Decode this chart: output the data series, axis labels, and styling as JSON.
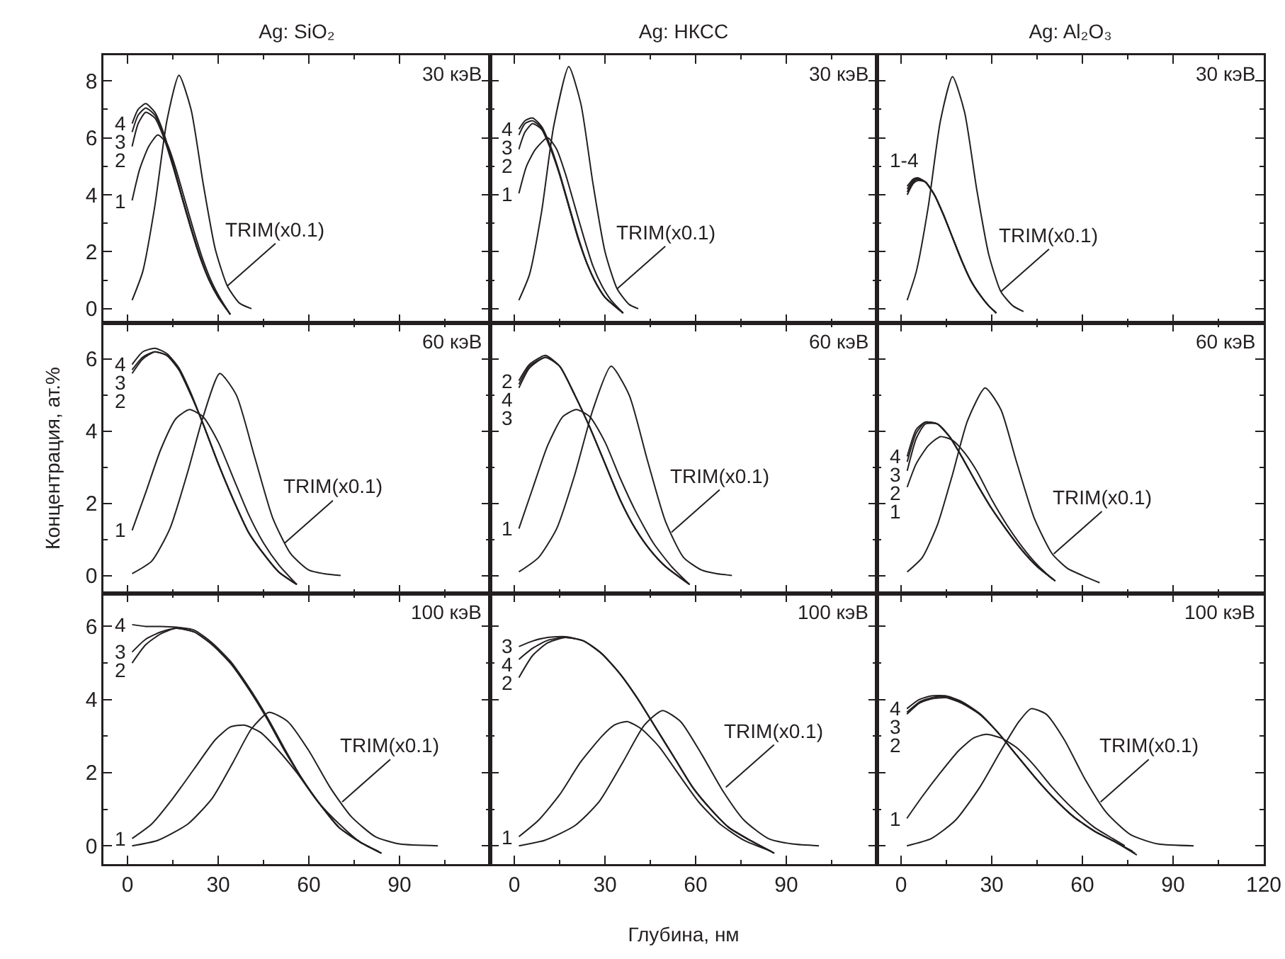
{
  "chart_data": [
    {
      "type": "line",
      "title": "Ag: SiO₂",
      "xlim": [
        -8,
        120
      ],
      "xticks": [
        0,
        30,
        60,
        90
      ],
      "ylim": [
        -0.5,
        8.9
      ],
      "yticks": [
        0,
        2,
        4,
        6,
        8
      ],
      "tick_labels": "y",
      "annotations": [
        "30 кэВ",
        {
          "text": "TRIM(x0.1)",
          "x": 33,
          "y": 0.8
        }
      ],
      "series": [
        {
          "color": "#231f20",
          "x": [
            1.5,
            5,
            9,
            13,
            17,
            21,
            25,
            29,
            33,
            37,
            41
          ],
          "values": [
            0.3,
            1.3,
            3.6,
            6.6,
            8.2,
            7.0,
            4.4,
            2.1,
            0.8,
            0.2,
            0
          ]
        },
        {
          "name": "1",
          "color": "#231f20",
          "x": [
            1.5,
            4,
            7,
            10,
            13,
            16,
            19,
            22,
            25,
            28,
            31,
            34
          ],
          "values": [
            3.8,
            4.9,
            5.7,
            6.1,
            5.8,
            4.9,
            3.8,
            2.7,
            1.7,
            0.9,
            0.3,
            -0.2
          ]
        },
        {
          "name": "2",
          "color": "#231f20",
          "x": [
            1.5,
            3.5,
            6,
            9,
            12,
            15,
            18,
            21,
            24,
            27,
            30,
            34
          ],
          "values": [
            5.7,
            6.5,
            6.9,
            6.7,
            6.0,
            5.0,
            3.9,
            2.8,
            1.8,
            1.0,
            0.4,
            -0.2
          ]
        },
        {
          "name": "3",
          "color": "#231f20",
          "x": [
            1.5,
            3.5,
            6,
            9,
            12,
            15,
            18,
            21,
            24,
            27,
            30,
            34
          ],
          "values": [
            6.2,
            6.8,
            7.05,
            6.8,
            6.1,
            5.05,
            3.9,
            2.8,
            1.8,
            1.0,
            0.4,
            -0.2
          ]
        },
        {
          "name": "4",
          "color": "#231f20",
          "x": [
            1.5,
            3.5,
            6,
            9,
            12,
            15,
            18,
            21,
            24,
            27,
            30,
            34
          ],
          "values": [
            6.5,
            7.0,
            7.2,
            6.9,
            6.15,
            5.1,
            3.95,
            2.85,
            1.85,
            1.0,
            0.4,
            -0.2
          ]
        }
      ]
    },
    {
      "type": "line",
      "title": "Ag: НКСС",
      "xlim": [
        -8,
        120
      ],
      "xticks": [
        0,
        30,
        60,
        90
      ],
      "ylim": [
        -0.5,
        8.9
      ],
      "yticks": [
        0,
        2,
        4,
        6,
        8
      ],
      "tick_labels": false,
      "annotations": [
        "30 кэВ",
        {
          "text": "TRIM(x0.1)",
          "x": 34,
          "y": 0.7
        }
      ],
      "series": [
        {
          "color": "#231f20",
          "x": [
            1.5,
            5,
            9,
            13,
            18,
            22,
            26,
            30,
            34,
            38,
            41
          ],
          "values": [
            0.3,
            1.2,
            3.4,
            6.4,
            8.5,
            7.2,
            4.4,
            2.0,
            0.7,
            0.15,
            0
          ]
        },
        {
          "name": "1",
          "color": "#231f20",
          "x": [
            1.5,
            4,
            7,
            11,
            14,
            17,
            20,
            23,
            26,
            29,
            32,
            36
          ],
          "values": [
            4.05,
            5.0,
            5.6,
            6.0,
            5.6,
            4.7,
            3.6,
            2.5,
            1.5,
            0.8,
            0.3,
            -0.15
          ]
        },
        {
          "name": "2",
          "color": "#231f20",
          "x": [
            1.5,
            3.5,
            6,
            9,
            12,
            15,
            18,
            21,
            24,
            27,
            30,
            36
          ],
          "values": [
            5.6,
            6.2,
            6.5,
            6.3,
            5.6,
            4.7,
            3.6,
            2.5,
            1.6,
            0.9,
            0.4,
            -0.15
          ]
        },
        {
          "name": "3",
          "color": "#231f20",
          "x": [
            1.5,
            3.5,
            6,
            9,
            12,
            15,
            18,
            21,
            24,
            27,
            30,
            36
          ],
          "values": [
            6.1,
            6.5,
            6.6,
            6.35,
            5.65,
            4.7,
            3.6,
            2.5,
            1.6,
            0.9,
            0.4,
            -0.15
          ]
        },
        {
          "name": "4",
          "color": "#231f20",
          "x": [
            1.5,
            3.5,
            6,
            9,
            12,
            15,
            18,
            21,
            24,
            27,
            30,
            36
          ],
          "values": [
            6.3,
            6.6,
            6.7,
            6.4,
            5.7,
            4.75,
            3.65,
            2.55,
            1.6,
            0.9,
            0.4,
            -0.15
          ]
        }
      ]
    },
    {
      "type": "line",
      "title": "Ag: Al₂O₃",
      "xlim": [
        -8,
        120
      ],
      "xticks": [
        0,
        30,
        60,
        90,
        120
      ],
      "ylim": [
        -0.5,
        8.9
      ],
      "yticks": [
        0,
        2,
        4,
        6,
        8
      ],
      "tick_labels": false,
      "annotations": [
        "30 кэВ",
        {
          "text": "1-4",
          "x": 5.5,
          "y": 4.6
        },
        {
          "text": "TRIM(x0.1)",
          "x": 33,
          "y": 0.6
        }
      ],
      "series": [
        {
          "color": "#231f20",
          "x": [
            2,
            5,
            9,
            13,
            17,
            21,
            25,
            29,
            33,
            37,
            40.5
          ],
          "values": [
            0.3,
            1.3,
            3.6,
            6.6,
            8.15,
            6.9,
            4.2,
            1.9,
            0.6,
            0.1,
            -0.1
          ]
        },
        {
          "color": "#231f20",
          "x": [
            2,
            4,
            5.5,
            8,
            11,
            14,
            17,
            20,
            23,
            26,
            29,
            31.5
          ],
          "values": [
            4.0,
            4.4,
            4.5,
            4.45,
            4.0,
            3.3,
            2.5,
            1.7,
            1.0,
            0.5,
            0.1,
            -0.15
          ]
        },
        {
          "color": "#231f20",
          "x": [
            2,
            4,
            5.5,
            8,
            11,
            14,
            17,
            20,
            23,
            26,
            29,
            31.5
          ],
          "values": [
            4.1,
            4.45,
            4.55,
            4.45,
            4.0,
            3.3,
            2.5,
            1.7,
            1.0,
            0.5,
            0.1,
            -0.15
          ]
        },
        {
          "color": "#231f20",
          "x": [
            2,
            4,
            5.5,
            8,
            11,
            14,
            17,
            20,
            23,
            26,
            29,
            31.5
          ],
          "values": [
            4.2,
            4.5,
            4.58,
            4.45,
            4.0,
            3.3,
            2.5,
            1.7,
            1.0,
            0.5,
            0.1,
            -0.15
          ]
        },
        {
          "color": "#231f20",
          "x": [
            2,
            4,
            5.5,
            8,
            11,
            14,
            17,
            20,
            23,
            26,
            29,
            31.5
          ],
          "values": [
            4.3,
            4.55,
            4.6,
            4.45,
            4.0,
            3.3,
            2.5,
            1.7,
            1.0,
            0.5,
            0.1,
            -0.15
          ]
        }
      ]
    },
    {
      "type": "line",
      "ylabel": "Концентрация, ат.%",
      "xlim": [
        -8,
        120
      ],
      "xticks": [
        0,
        30,
        60,
        90
      ],
      "ylim": [
        -0.5,
        7.0
      ],
      "yticks": [
        0,
        2,
        4,
        6
      ],
      "tick_labels": "y",
      "annotations": [
        "60 кэВ",
        {
          "text": "TRIM(x0.1)",
          "x": 52,
          "y": 0.9
        }
      ],
      "series": [
        {
          "color": "#231f20",
          "x": [
            1.5,
            8,
            14,
            20,
            25,
            30.5,
            36,
            42,
            48,
            54,
            60,
            65,
            70.5
          ],
          "values": [
            0.05,
            0.4,
            1.3,
            2.9,
            4.4,
            5.6,
            5.0,
            3.3,
            1.6,
            0.6,
            0.15,
            0.05,
            0
          ]
        },
        {
          "name": "1",
          "color": "#231f20",
          "x": [
            1.5,
            6,
            11,
            16,
            20.5,
            25,
            30,
            35,
            40,
            45,
            50,
            56
          ],
          "values": [
            1.25,
            2.3,
            3.5,
            4.35,
            4.6,
            4.4,
            3.7,
            2.7,
            1.7,
            0.9,
            0.3,
            -0.25
          ]
        },
        {
          "name": "2",
          "color": "#231f20",
          "x": [
            1.5,
            5,
            9,
            13,
            17,
            21,
            25,
            30,
            35,
            40,
            45,
            50,
            56
          ],
          "values": [
            5.6,
            6.0,
            6.2,
            6.1,
            5.7,
            5.0,
            4.2,
            3.1,
            2.1,
            1.2,
            0.6,
            0.1,
            -0.25
          ]
        },
        {
          "name": "3",
          "color": "#231f20",
          "x": [
            1.5,
            5,
            9,
            13,
            17,
            21,
            25,
            30,
            35,
            40,
            45,
            50,
            56
          ],
          "values": [
            5.7,
            6.05,
            6.2,
            6.1,
            5.7,
            5.0,
            4.2,
            3.1,
            2.1,
            1.2,
            0.6,
            0.1,
            -0.25
          ]
        },
        {
          "name": "4",
          "color": "#231f20",
          "x": [
            1.5,
            5,
            9,
            13,
            17,
            21,
            25,
            30,
            35,
            40,
            45,
            50,
            56
          ],
          "values": [
            5.85,
            6.2,
            6.3,
            6.15,
            5.75,
            5.05,
            4.2,
            3.1,
            2.1,
            1.2,
            0.6,
            0.1,
            -0.25
          ]
        }
      ]
    },
    {
      "type": "line",
      "xlim": [
        -8,
        120
      ],
      "xticks": [
        0,
        30,
        60,
        90
      ],
      "ylim": [
        -0.5,
        7.0
      ],
      "yticks": [
        0,
        2,
        4,
        6
      ],
      "tick_labels": false,
      "annotations": [
        "60 кэВ",
        {
          "text": "TRIM(x0.1)",
          "x": 52,
          "y": 1.2
        }
      ],
      "series": [
        {
          "color": "#231f20",
          "x": [
            1.5,
            8,
            14,
            20,
            26,
            32,
            38,
            44,
            50,
            56,
            62,
            67,
            72
          ],
          "values": [
            0.1,
            0.5,
            1.3,
            2.8,
            4.6,
            5.8,
            5.0,
            3.2,
            1.5,
            0.5,
            0.15,
            0.05,
            0
          ]
        },
        {
          "name": "1",
          "color": "#231f20",
          "x": [
            1.5,
            6,
            11,
            16,
            20.5,
            25,
            30,
            35,
            40,
            46,
            52,
            58
          ],
          "values": [
            1.3,
            2.4,
            3.6,
            4.4,
            4.6,
            4.4,
            3.7,
            2.7,
            1.8,
            0.9,
            0.25,
            -0.25
          ]
        },
        {
          "name": "2",
          "color": "#231f20",
          "x": [
            1.5,
            5,
            10.3,
            15,
            20,
            25,
            30,
            35,
            40,
            45,
            50,
            58
          ],
          "values": [
            5.4,
            5.85,
            6.1,
            5.8,
            5.0,
            4.1,
            3.1,
            2.1,
            1.3,
            0.7,
            0.25,
            -0.25
          ]
        },
        {
          "name": "3",
          "color": "#231f20",
          "x": [
            1.5,
            5,
            10.3,
            15,
            20,
            25,
            30,
            35,
            40,
            45,
            50,
            58
          ],
          "values": [
            5.2,
            5.75,
            6.05,
            5.8,
            5.0,
            4.1,
            3.1,
            2.1,
            1.3,
            0.7,
            0.25,
            -0.25
          ]
        },
        {
          "name": "4",
          "color": "#231f20",
          "x": [
            1.5,
            5,
            10.3,
            15,
            20,
            25,
            30,
            35,
            40,
            45,
            50,
            58
          ],
          "values": [
            5.3,
            5.8,
            6.05,
            5.8,
            5.0,
            4.1,
            3.1,
            2.1,
            1.3,
            0.7,
            0.25,
            -0.25
          ]
        }
      ]
    },
    {
      "type": "line",
      "xlim": [
        -8,
        120
      ],
      "xticks": [
        0,
        30,
        60,
        90,
        120
      ],
      "ylim": [
        -0.5,
        7.0
      ],
      "yticks": [
        0,
        2,
        4,
        6
      ],
      "tick_labels": false,
      "annotations": [
        "60 кэВ",
        {
          "text": "TRIM(x0.1)",
          "x": 50.5,
          "y": 0.6
        }
      ],
      "series": [
        {
          "color": "#231f20",
          "x": [
            2,
            7,
            12,
            17,
            22,
            27.8,
            33,
            38,
            44,
            50,
            55,
            60,
            65.7
          ],
          "values": [
            0.1,
            0.5,
            1.4,
            2.8,
            4.3,
            5.2,
            4.6,
            3.2,
            1.6,
            0.6,
            0.2,
            0,
            -0.2
          ]
        },
        {
          "name": "1",
          "color": "#231f20",
          "x": [
            2,
            5,
            9,
            13,
            17,
            21,
            25,
            30,
            35,
            40,
            45,
            50
          ],
          "values": [
            2.45,
            3.1,
            3.6,
            3.85,
            3.75,
            3.4,
            2.9,
            2.1,
            1.4,
            0.8,
            0.3,
            -0.1
          ]
        },
        {
          "name": "2",
          "color": "#231f20",
          "x": [
            2,
            5,
            8,
            12,
            16,
            20,
            25,
            30,
            35,
            40,
            45,
            51
          ],
          "values": [
            2.9,
            3.8,
            4.2,
            4.2,
            3.85,
            3.3,
            2.55,
            1.85,
            1.25,
            0.7,
            0.25,
            -0.15
          ]
        },
        {
          "name": "3",
          "color": "#231f20",
          "x": [
            2,
            5,
            8,
            12,
            16,
            20,
            25,
            30,
            35,
            40,
            45,
            51
          ],
          "values": [
            3.15,
            3.95,
            4.25,
            4.2,
            3.85,
            3.3,
            2.55,
            1.85,
            1.25,
            0.7,
            0.25,
            -0.15
          ]
        },
        {
          "name": "4",
          "color": "#231f20",
          "x": [
            2,
            5,
            8,
            12,
            16,
            20,
            25,
            30,
            35,
            40,
            45,
            51
          ],
          "values": [
            3.3,
            4.05,
            4.25,
            4.2,
            3.85,
            3.3,
            2.55,
            1.85,
            1.25,
            0.7,
            0.25,
            -0.15
          ]
        }
      ]
    },
    {
      "type": "line",
      "xlim": [
        -8,
        120
      ],
      "xticks": [
        0,
        30,
        60,
        90
      ],
      "ylim": [
        -0.5,
        6.9
      ],
      "yticks": [
        0,
        2,
        4,
        6
      ],
      "annotations": [
        "100 кэВ",
        {
          "text": "TRIM(x0.1)",
          "x": 71,
          "y": 1.2
        }
      ],
      "series": [
        {
          "color": "#231f20",
          "x": [
            1.5,
            10,
            20,
            28,
            35,
            41,
            46.8,
            53,
            60,
            67,
            74,
            82,
            90,
            102.7
          ],
          "values": [
            0,
            0.15,
            0.6,
            1.3,
            2.3,
            3.2,
            3.65,
            3.4,
            2.6,
            1.6,
            0.8,
            0.25,
            0.05,
            0
          ]
        },
        {
          "name": "1",
          "color": "#231f20",
          "x": [
            1.5,
            8,
            15,
            22,
            29,
            34,
            38.6,
            44,
            50,
            56,
            63,
            70,
            77,
            83
          ],
          "values": [
            0.2,
            0.6,
            1.3,
            2.1,
            2.9,
            3.25,
            3.3,
            3.1,
            2.6,
            2.0,
            1.2,
            0.6,
            0.1,
            -0.15
          ]
        },
        {
          "name": "2",
          "color": "#231f20",
          "x": [
            1.5,
            6,
            11,
            16,
            22,
            28,
            34,
            40,
            46,
            52,
            58,
            64,
            70,
            77,
            84
          ],
          "values": [
            5.0,
            5.5,
            5.8,
            5.95,
            5.85,
            5.5,
            5.0,
            4.3,
            3.5,
            2.6,
            1.8,
            1.1,
            0.5,
            0.1,
            -0.2
          ]
        },
        {
          "name": "3",
          "color": "#231f20",
          "x": [
            1.5,
            6,
            11,
            16,
            22,
            28,
            34,
            40,
            46,
            52,
            58,
            64,
            70,
            77,
            84
          ],
          "values": [
            5.3,
            5.65,
            5.85,
            5.95,
            5.85,
            5.5,
            5.0,
            4.3,
            3.5,
            2.6,
            1.8,
            1.1,
            0.5,
            0.1,
            -0.2
          ]
        },
        {
          "name": "4",
          "color": "#231f20",
          "x": [
            1.5,
            6,
            11,
            16,
            22,
            28,
            34,
            40,
            46,
            52,
            58,
            64,
            70,
            77,
            84
          ],
          "values": [
            6.05,
            6.0,
            6.0,
            5.98,
            5.9,
            5.55,
            5.05,
            4.35,
            3.55,
            2.65,
            1.8,
            1.1,
            0.5,
            0.1,
            -0.2
          ]
        }
      ]
    },
    {
      "type": "line",
      "xlabel": "Глубина, нм",
      "xlim": [
        -8,
        120
      ],
      "xticks": [
        0,
        30,
        60,
        90
      ],
      "ylim": [
        -0.5,
        6.9
      ],
      "yticks": [
        0,
        2,
        4,
        6
      ],
      "tick_labels": "x",
      "annotations": [
        "100 кэВ",
        {
          "text": "TRIM(x0.1)",
          "x": 70,
          "y": 1.6
        }
      ],
      "series": [
        {
          "color": "#231f20",
          "x": [
            1.5,
            10,
            20,
            28,
            36,
            43,
            49,
            55,
            62,
            69,
            76,
            84,
            92,
            100.8
          ],
          "values": [
            0,
            0.15,
            0.55,
            1.2,
            2.3,
            3.3,
            3.7,
            3.4,
            2.5,
            1.5,
            0.7,
            0.2,
            0.05,
            0
          ]
        },
        {
          "name": "1",
          "color": "#231f20",
          "x": [
            1.5,
            8,
            15,
            22,
            29,
            33,
            37.3,
            42,
            48,
            54,
            61,
            68,
            76,
            85
          ],
          "values": [
            0.25,
            0.7,
            1.4,
            2.3,
            3.0,
            3.3,
            3.4,
            3.2,
            2.7,
            2.0,
            1.2,
            0.6,
            0.15,
            -0.15
          ]
        },
        {
          "name": "2",
          "color": "#231f20",
          "x": [
            1.5,
            6,
            11,
            17,
            23,
            29,
            35,
            41,
            47,
            53,
            59,
            65,
            71,
            78,
            86
          ],
          "values": [
            4.6,
            5.2,
            5.55,
            5.7,
            5.6,
            5.25,
            4.7,
            4.0,
            3.2,
            2.4,
            1.6,
            1.0,
            0.5,
            0.15,
            -0.2
          ]
        },
        {
          "name": "3",
          "color": "#231f20",
          "x": [
            1.5,
            6,
            11,
            17,
            23,
            29,
            35,
            41,
            47,
            53,
            59,
            65,
            71,
            78,
            86
          ],
          "values": [
            5.45,
            5.6,
            5.7,
            5.72,
            5.6,
            5.25,
            4.7,
            4.0,
            3.2,
            2.4,
            1.6,
            1.0,
            0.5,
            0.15,
            -0.2
          ]
        },
        {
          "name": "4",
          "color": "#231f20",
          "x": [
            1.5,
            6,
            11,
            17,
            23,
            29,
            35,
            41,
            47,
            53,
            59,
            65,
            71,
            78,
            86
          ],
          "values": [
            5.1,
            5.4,
            5.62,
            5.7,
            5.6,
            5.25,
            4.7,
            4.0,
            3.2,
            2.4,
            1.6,
            1.0,
            0.5,
            0.15,
            -0.2
          ]
        }
      ]
    },
    {
      "type": "line",
      "xlim": [
        -8,
        120
      ],
      "xticks": [
        0,
        30,
        60,
        90,
        120
      ],
      "ylim": [
        -0.5,
        6.9
      ],
      "yticks": [
        0,
        2,
        4,
        6
      ],
      "tick_labels": "x",
      "annotations": [
        "100 кэВ",
        {
          "text": "TRIM(x0.1)",
          "x": 66,
          "y": 1.2
        }
      ],
      "series": [
        {
          "color": "#231f20",
          "x": [
            1.9,
            10,
            18,
            26,
            33,
            39,
            43,
            48,
            54,
            61,
            68,
            76,
            85,
            96.8
          ],
          "values": [
            0,
            0.2,
            0.7,
            1.6,
            2.6,
            3.4,
            3.75,
            3.6,
            2.9,
            1.8,
            0.9,
            0.3,
            0.05,
            0
          ]
        },
        {
          "name": "1",
          "color": "#231f20",
          "x": [
            1.9,
            7,
            13,
            19,
            24,
            28.2,
            33,
            38,
            44,
            50,
            57,
            64,
            70,
            74
          ],
          "values": [
            0.75,
            1.35,
            2.0,
            2.6,
            2.95,
            3.05,
            2.95,
            2.7,
            2.2,
            1.6,
            1.0,
            0.5,
            0.2,
            0
          ]
        },
        {
          "name": "2",
          "color": "#231f20",
          "x": [
            1.9,
            6,
            10,
            14.8,
            20,
            26,
            32,
            38,
            44,
            50,
            57,
            64,
            71,
            76.6
          ],
          "values": [
            3.6,
            3.9,
            4.02,
            4.05,
            3.9,
            3.6,
            3.1,
            2.5,
            1.9,
            1.35,
            0.8,
            0.4,
            0.1,
            -0.15
          ]
        },
        {
          "name": "3",
          "color": "#231f20",
          "x": [
            1.9,
            6,
            10,
            14.8,
            20,
            26,
            32,
            38,
            44,
            50,
            57,
            64,
            71,
            77.4
          ],
          "values": [
            3.65,
            3.93,
            4.05,
            4.08,
            3.92,
            3.6,
            3.1,
            2.5,
            1.9,
            1.35,
            0.8,
            0.4,
            0.1,
            -0.2
          ]
        },
        {
          "name": "4",
          "color": "#231f20",
          "x": [
            1.9,
            6,
            10,
            14.8,
            20,
            26,
            32,
            38,
            44,
            50,
            57,
            64,
            71,
            78
          ],
          "values": [
            3.75,
            4.0,
            4.1,
            4.1,
            3.95,
            3.62,
            3.1,
            2.5,
            1.9,
            1.35,
            0.8,
            0.4,
            0.1,
            -0.25
          ]
        }
      ]
    }
  ]
}
